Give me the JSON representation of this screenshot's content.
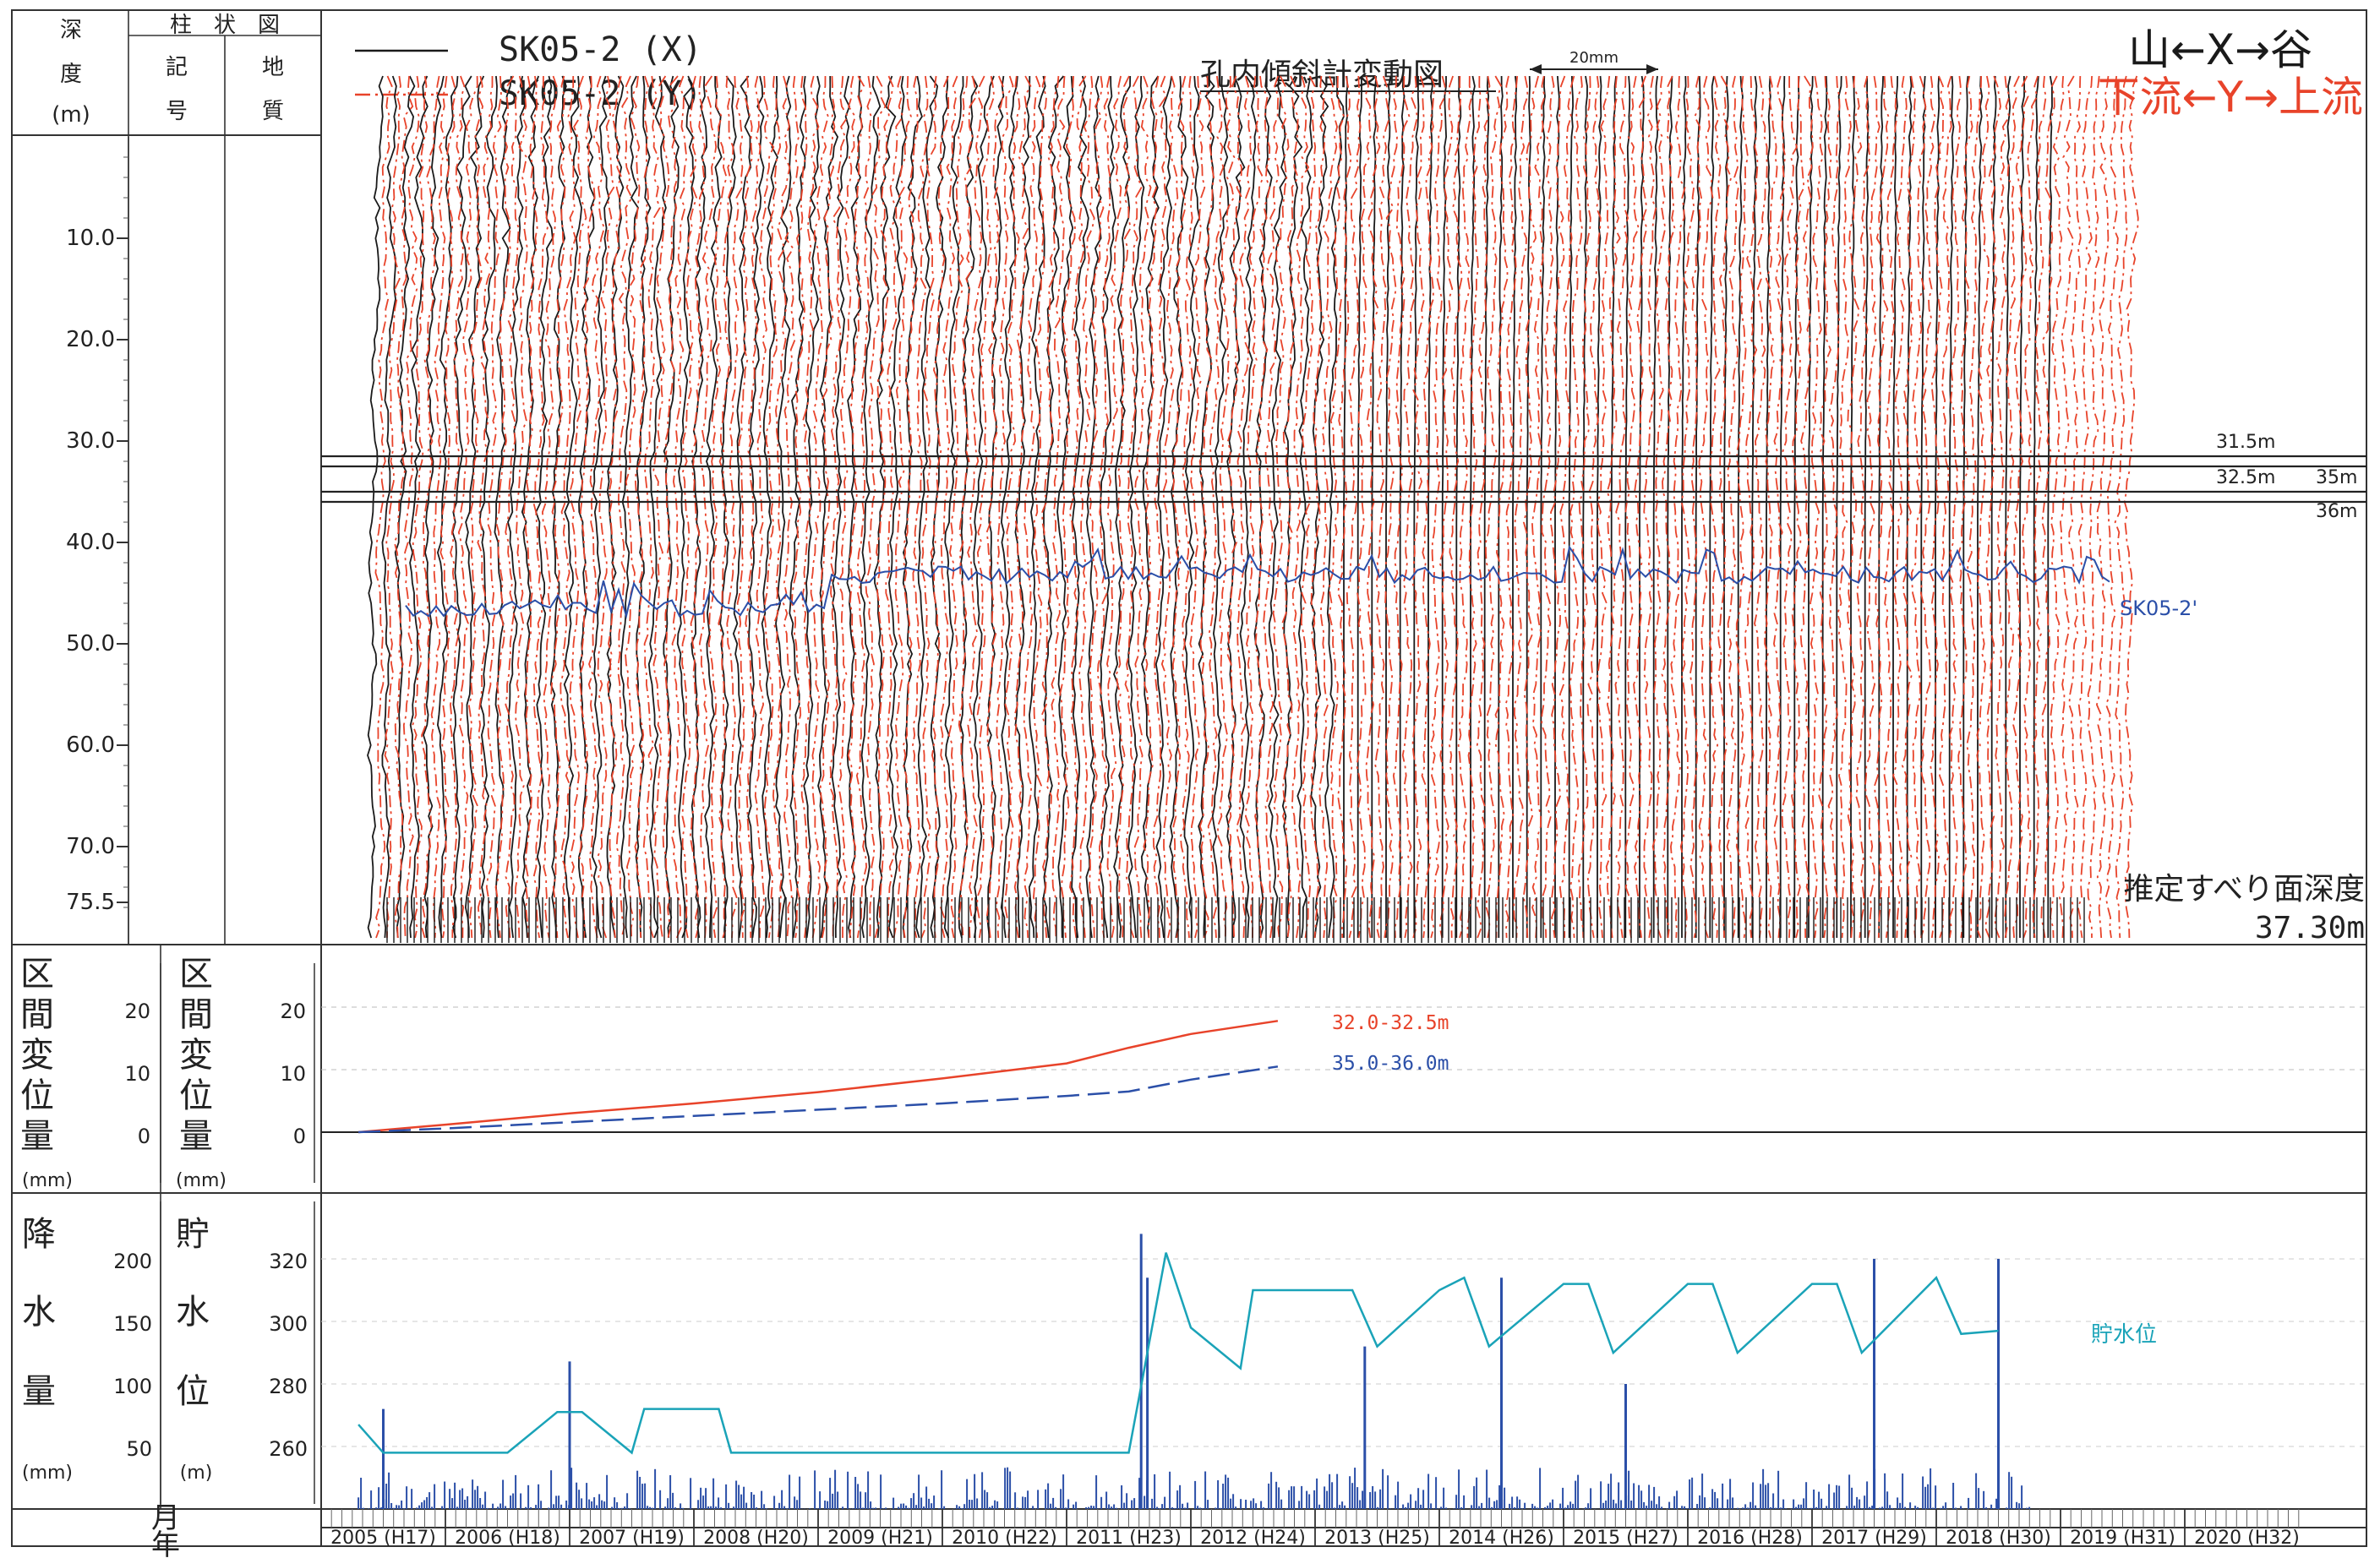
{
  "header": {
    "col_depth": [
      "深",
      "度",
      "(m)"
    ],
    "col_group": "柱　状　図",
    "col_symbol": [
      "記",
      "号"
    ],
    "col_geology": [
      "地",
      "質"
    ]
  },
  "title": "孔内傾斜計変動図",
  "scale_label": "20mm",
  "legend": {
    "x_label": "SK05-2 (X)",
    "y_label": "SK05-2 (Y)",
    "x_color": "#1a1a1a",
    "y_color": "#e8432a"
  },
  "direction": {
    "x_text": "山←X→谷",
    "y_text": "下流←Y→上流",
    "x_color": "#1a1a1a",
    "y_color": "#e8432a"
  },
  "depth_ticks": [
    "10.0",
    "20.0",
    "30.0",
    "40.0",
    "50.0",
    "60.0",
    "70.0",
    "75.5"
  ],
  "marker_labels": [
    "31.5m",
    "32.5m",
    "35m",
    "36m"
  ],
  "water_series_label": "SK05-2'",
  "slip_label_line1": "推定すべり面深度",
  "slip_label_line2": "37.30m",
  "panel2": {
    "left_label": [
      "区",
      "間",
      "変",
      "位",
      "量"
    ],
    "left_unit": "(mm)",
    "right_label": [
      "区",
      "間",
      "変",
      "位",
      "量"
    ],
    "right_unit": "(mm)",
    "ticks": [
      "20",
      "10",
      "0"
    ],
    "series_label_red": "32.0-32.5m",
    "series_label_blue": "35.0-36.0m"
  },
  "panel3": {
    "left_label": [
      "降",
      "水",
      "量"
    ],
    "left_unit": "(mm)",
    "left_ticks": [
      "200",
      "150",
      "100",
      "50"
    ],
    "right_label": [
      "貯",
      "水",
      "位"
    ],
    "right_unit": "(m)",
    "right_ticks": [
      "320",
      "300",
      "280",
      "260"
    ],
    "reservoir_label": "貯水位"
  },
  "axis": {
    "month_label": "月",
    "year_label": "年",
    "years": [
      "2005 (H17)",
      "2006 (H18)",
      "2007 (H19)",
      "2008 (H20)",
      "2009 (H21)",
      "2010 (H22)",
      "2011 (H23)",
      "2012 (H24)",
      "2013 (H25)",
      "2014 (H26)",
      "2015 (H27)",
      "2016 (H28)",
      "2017 (H29)",
      "2018 (H30)",
      "2019 (H31)",
      "2020 (H32)"
    ]
  },
  "chart_data": [
    {
      "type": "line",
      "title": "孔内傾斜計変動図",
      "ylabel": "深度 (m)",
      "ylim": [
        0,
        76
      ],
      "y_ticks": [
        10.0,
        20.0,
        30.0,
        40.0,
        50.0,
        60.0,
        70.0,
        75.5
      ],
      "depth_markers_m": [
        31.5,
        32.5,
        35,
        36
      ],
      "slip_surface_depth_m": 37.3,
      "series": [
        {
          "name": "SK05-2 (X)",
          "color": "#1a1a1a"
        },
        {
          "name": "SK05-2 (Y)",
          "color": "#e8432a"
        },
        {
          "name": "SK05-2'",
          "color": "#2b4fa8"
        }
      ]
    },
    {
      "type": "line",
      "ylabel": "区間変位量 (mm)",
      "ylim": [
        -10,
        25
      ],
      "yticks": [
        0,
        10,
        20
      ],
      "x": [
        2005.3,
        2006.0,
        2007.0,
        2008.0,
        2009.0,
        2010.0,
        2011.0,
        2011.5,
        2012.0,
        2012.7
      ],
      "series": [
        {
          "name": "32.0-32.5m",
          "color": "#e8432a",
          "values": [
            0,
            1.2,
            3.0,
            4.6,
            6.4,
            8.6,
            11.0,
            13.5,
            15.7,
            17.8
          ]
        },
        {
          "name": "35.0-36.0m",
          "color": "#2b4fa8",
          "values": [
            0,
            0.6,
            1.6,
            2.6,
            3.6,
            4.6,
            5.8,
            6.5,
            8.4,
            10.5
          ]
        }
      ]
    },
    {
      "type": "line",
      "ylabel": "貯水位 (m) / 降水量 (mm)",
      "ylim_reservoir": [
        245,
        335
      ],
      "ylim_precip": [
        0,
        250
      ],
      "x": [
        2005.3,
        2005.5,
        2006.5,
        2006.9,
        2007.1,
        2007.5,
        2007.6,
        2008.2,
        2008.3,
        2011.3,
        2011.5,
        2011.8,
        2012.0,
        2012.4,
        2012.5,
        2013.3,
        2013.5,
        2014.0,
        2014.2,
        2014.4,
        2015.0,
        2015.2,
        2015.4,
        2016.0,
        2016.2,
        2016.4,
        2017.0,
        2017.2,
        2017.4,
        2018.0,
        2018.2,
        2018.5
      ],
      "series": [
        {
          "name": "貯水位",
          "color": "#1aa3b8",
          "values": [
            267,
            258,
            258,
            271,
            271,
            258,
            272,
            272,
            258,
            258,
            258,
            322,
            298,
            285,
            310,
            310,
            292,
            310,
            314,
            292,
            312,
            312,
            290,
            312,
            312,
            290,
            312,
            312,
            290,
            314,
            296,
            297
          ]
        }
      ],
      "precip_peaks_mm": [
        {
          "x": 2005.5,
          "value": 80
        },
        {
          "x": 2007.0,
          "value": 118
        },
        {
          "x": 2011.6,
          "value": 220
        },
        {
          "x": 2011.65,
          "value": 185
        },
        {
          "x": 2013.4,
          "value": 130
        },
        {
          "x": 2014.5,
          "value": 185
        },
        {
          "x": 2015.5,
          "value": 100
        },
        {
          "x": 2017.5,
          "value": 200
        },
        {
          "x": 2018.5,
          "value": 200
        }
      ]
    }
  ]
}
